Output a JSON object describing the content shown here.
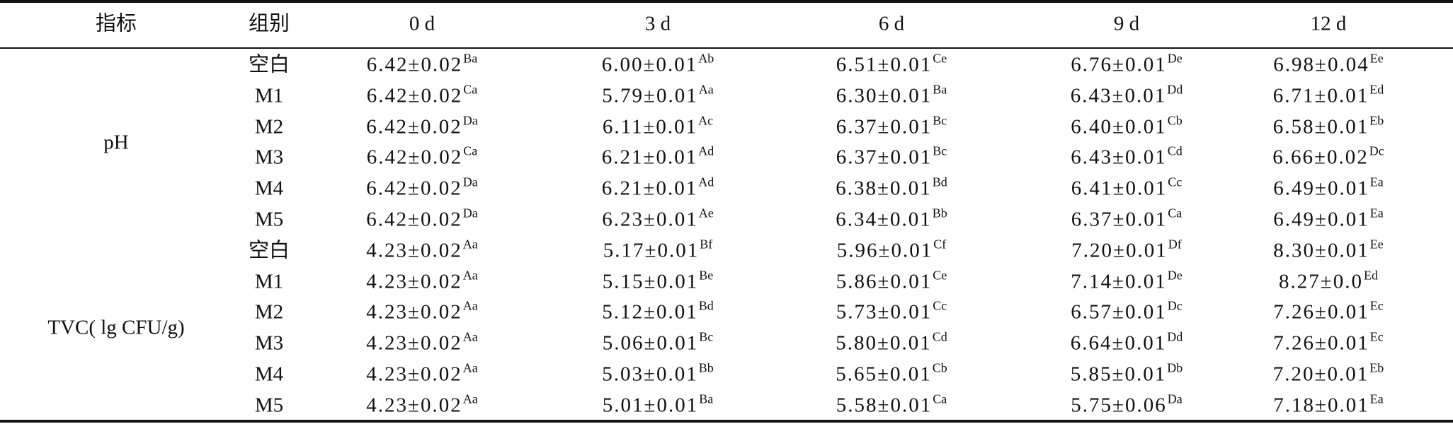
{
  "table": {
    "header": [
      "指标",
      "组别",
      "0 d",
      "3 d",
      "6 d",
      "9 d",
      "12 d"
    ],
    "sections": [
      {
        "label": "pH",
        "rows": [
          {
            "group": "空白",
            "cells": [
              {
                "value": "6.42±0.02",
                "sup": "Ba"
              },
              {
                "value": "6.00±0.01",
                "sup": "Ab"
              },
              {
                "value": "6.51±0.01",
                "sup": "Ce"
              },
              {
                "value": "6.76±0.01",
                "sup": "De"
              },
              {
                "value": "6.98±0.04",
                "sup": "Ee"
              }
            ]
          },
          {
            "group": "M1",
            "cells": [
              {
                "value": "6.42±0.02",
                "sup": "Ca"
              },
              {
                "value": "5.79±0.01",
                "sup": "Aa"
              },
              {
                "value": "6.30±0.01",
                "sup": "Ba"
              },
              {
                "value": "6.43±0.01",
                "sup": "Dd"
              },
              {
                "value": "6.71±0.01",
                "sup": "Ed"
              }
            ]
          },
          {
            "group": "M2",
            "cells": [
              {
                "value": "6.42±0.02",
                "sup": "Da"
              },
              {
                "value": "6.11±0.01",
                "sup": "Ac"
              },
              {
                "value": "6.37±0.01",
                "sup": "Bc"
              },
              {
                "value": "6.40±0.01",
                "sup": "Cb"
              },
              {
                "value": "6.58±0.01",
                "sup": "Eb"
              }
            ]
          },
          {
            "group": "M3",
            "cells": [
              {
                "value": "6.42±0.02",
                "sup": "Ca"
              },
              {
                "value": "6.21±0.01",
                "sup": "Ad"
              },
              {
                "value": "6.37±0.01",
                "sup": "Bc"
              },
              {
                "value": "6.43±0.01",
                "sup": "Cd"
              },
              {
                "value": "6.66±0.02",
                "sup": "Dc"
              }
            ]
          },
          {
            "group": "M4",
            "cells": [
              {
                "value": "6.42±0.02",
                "sup": "Da"
              },
              {
                "value": "6.21±0.01",
                "sup": "Ad"
              },
              {
                "value": "6.38±0.01",
                "sup": "Bd"
              },
              {
                "value": "6.41±0.01",
                "sup": "Cc"
              },
              {
                "value": "6.49±0.01",
                "sup": "Ea"
              }
            ]
          },
          {
            "group": "M5",
            "cells": [
              {
                "value": "6.42±0.02",
                "sup": "Da"
              },
              {
                "value": "6.23±0.01",
                "sup": "Ae"
              },
              {
                "value": "6.34±0.01",
                "sup": "Bb"
              },
              {
                "value": "6.37±0.01",
                "sup": "Ca"
              },
              {
                "value": "6.49±0.01",
                "sup": "Ea"
              }
            ]
          }
        ]
      },
      {
        "label": "TVC( lg CFU/g)",
        "rows": [
          {
            "group": "空白",
            "cells": [
              {
                "value": "4.23±0.02",
                "sup": "Aa"
              },
              {
                "value": "5.17±0.01",
                "sup": "Bf"
              },
              {
                "value": "5.96±0.01",
                "sup": "Cf"
              },
              {
                "value": "7.20±0.01",
                "sup": "Df"
              },
              {
                "value": "8.30±0.01",
                "sup": "Ee"
              }
            ]
          },
          {
            "group": "M1",
            "cells": [
              {
                "value": "4.23±0.02",
                "sup": "Aa"
              },
              {
                "value": "5.15±0.01",
                "sup": "Be"
              },
              {
                "value": "5.86±0.01",
                "sup": "Ce"
              },
              {
                "value": "7.14±0.01",
                "sup": "De"
              },
              {
                "value": "8.27±0.0",
                "sup": "Ed"
              }
            ]
          },
          {
            "group": "M2",
            "cells": [
              {
                "value": "4.23±0.02",
                "sup": "Aa"
              },
              {
                "value": "5.12±0.01",
                "sup": "Bd"
              },
              {
                "value": "5.73±0.01",
                "sup": "Cc"
              },
              {
                "value": "6.57±0.01",
                "sup": "Dc"
              },
              {
                "value": "7.26±0.01",
                "sup": "Ec"
              }
            ]
          },
          {
            "group": "M3",
            "cells": [
              {
                "value": "4.23±0.02",
                "sup": "Aa"
              },
              {
                "value": "5.06±0.01",
                "sup": "Bc"
              },
              {
                "value": "5.80±0.01",
                "sup": "Cd"
              },
              {
                "value": "6.64±0.01",
                "sup": "Dd"
              },
              {
                "value": "7.26±0.01",
                "sup": "Ec"
              }
            ]
          },
          {
            "group": "M4",
            "cells": [
              {
                "value": "4.23±0.02",
                "sup": "Aa"
              },
              {
                "value": "5.03±0.01",
                "sup": "Bb"
              },
              {
                "value": "5.65±0.01",
                "sup": "Cb"
              },
              {
                "value": "5.85±0.01",
                "sup": "Db"
              },
              {
                "value": "7.20±0.01",
                "sup": "Eb"
              }
            ]
          },
          {
            "group": "M5",
            "cells": [
              {
                "value": "4.23±0.02",
                "sup": "Aa"
              },
              {
                "value": "5.01±0.01",
                "sup": "Ba"
              },
              {
                "value": "5.58±0.01",
                "sup": "Ca"
              },
              {
                "value": "5.75±0.06",
                "sup": "Da"
              },
              {
                "value": "7.18±0.01",
                "sup": "Ea"
              }
            ]
          }
        ]
      }
    ]
  }
}
